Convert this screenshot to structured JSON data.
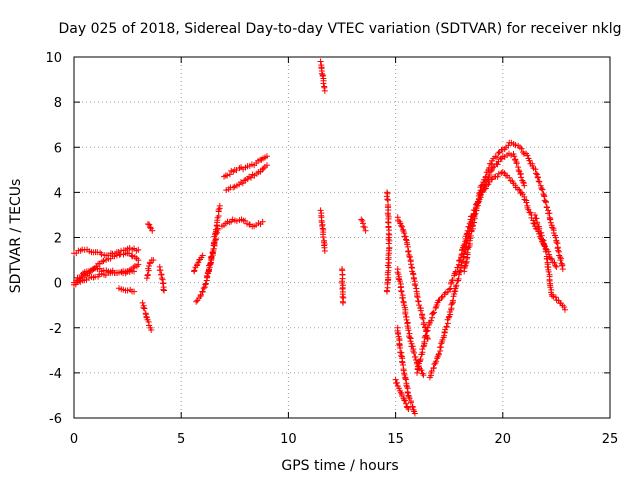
{
  "chart_data": {
    "type": "scatter",
    "title": "Day 025 of 2018, Sidereal Day-to-day VTEC variation (SDTVAR) for receiver nklg",
    "xlabel": "GPS time / hours",
    "ylabel": "SDTVAR / TECUs",
    "xlim": [
      0,
      25
    ],
    "ylim": [
      -6,
      10
    ],
    "xticks": [
      0,
      5,
      10,
      15,
      20,
      25
    ],
    "yticks": [
      -6,
      -4,
      -2,
      0,
      2,
      4,
      6,
      8,
      10
    ],
    "grid": true,
    "marker": "+",
    "color": "#ff0000",
    "series": [
      {
        "name": "track-a1",
        "x": [
          0.0,
          0.5,
          1.0,
          1.5,
          2.0,
          2.5,
          3.0
        ],
        "y": [
          1.3,
          1.45,
          1.35,
          1.2,
          1.35,
          1.5,
          1.45
        ]
      },
      {
        "name": "track-a2",
        "x": [
          0.0,
          0.4,
          0.8,
          1.2,
          1.6,
          2.0,
          2.5,
          3.0
        ],
        "y": [
          -0.1,
          0.25,
          0.55,
          0.85,
          1.05,
          1.2,
          1.3,
          1.0
        ]
      },
      {
        "name": "track-a3",
        "x": [
          0.1,
          0.6,
          1.1,
          1.6,
          2.1,
          2.6,
          3.0
        ],
        "y": [
          0.1,
          0.5,
          0.6,
          0.5,
          0.45,
          0.55,
          0.8
        ]
      },
      {
        "name": "track-a4",
        "x": [
          0.0,
          0.7,
          1.4,
          2.1,
          2.8
        ],
        "y": [
          0.0,
          0.2,
          0.35,
          0.45,
          0.5
        ]
      },
      {
        "name": "track-a5",
        "x": [
          2.1,
          2.5,
          2.8
        ],
        "y": [
          -0.25,
          -0.35,
          -0.4
        ]
      },
      {
        "name": "track-b1",
        "x": [
          3.2,
          3.35,
          3.5,
          3.6
        ],
        "y": [
          -0.9,
          -1.4,
          -1.9,
          -2.1
        ]
      },
      {
        "name": "track-b2",
        "x": [
          3.45,
          3.55,
          3.65
        ],
        "y": [
          2.6,
          2.45,
          2.3
        ]
      },
      {
        "name": "track-b3",
        "x": [
          3.4,
          3.55,
          3.7
        ],
        "y": [
          0.2,
          0.9,
          1.0
        ]
      },
      {
        "name": "track-b4",
        "x": [
          4.0,
          4.1,
          4.2
        ],
        "y": [
          0.7,
          0.2,
          -0.35
        ]
      },
      {
        "name": "track-c1",
        "x": [
          5.7,
          5.9,
          6.1,
          6.3,
          6.5,
          6.7
        ],
        "y": [
          -0.85,
          -0.6,
          -0.2,
          0.6,
          1.4,
          2.4
        ]
      },
      {
        "name": "track-c2",
        "x": [
          6.2,
          6.4,
          6.6,
          6.8
        ],
        "y": [
          0.3,
          1.0,
          2.2,
          3.4
        ]
      },
      {
        "name": "track-c3",
        "x": [
          5.6,
          5.8,
          6.0
        ],
        "y": [
          0.5,
          0.9,
          1.2
        ]
      },
      {
        "name": "track-d1",
        "x": [
          7.0,
          7.5,
          8.0,
          8.5,
          9.0
        ],
        "y": [
          4.7,
          5.0,
          5.1,
          5.3,
          5.6
        ]
      },
      {
        "name": "track-d2",
        "x": [
          7.1,
          7.6,
          8.1,
          8.6,
          9.0
        ],
        "y": [
          4.1,
          4.3,
          4.6,
          4.9,
          5.2
        ]
      },
      {
        "name": "track-d3",
        "x": [
          6.9,
          7.4,
          7.9,
          8.4,
          8.8
        ],
        "y": [
          2.5,
          2.8,
          2.75,
          2.5,
          2.7
        ]
      },
      {
        "name": "track-e1",
        "x": [
          11.5,
          11.55,
          11.6,
          11.7
        ],
        "y": [
          9.8,
          9.5,
          9.2,
          8.5
        ]
      },
      {
        "name": "track-e2",
        "x": [
          11.5,
          11.6,
          11.7
        ],
        "y": [
          3.2,
          2.4,
          1.4
        ]
      },
      {
        "name": "track-e3",
        "x": [
          12.5,
          12.55
        ],
        "y": [
          0.6,
          -0.9
        ]
      },
      {
        "name": "track-e4",
        "x": [
          13.4,
          13.6
        ],
        "y": [
          2.8,
          2.3
        ]
      },
      {
        "name": "track-e5",
        "x": [
          14.6,
          14.65,
          14.7,
          14.6
        ],
        "y": [
          4.0,
          3.0,
          1.5,
          -0.4
        ]
      },
      {
        "name": "track-f1",
        "x": [
          15.1,
          15.4,
          15.7,
          16.0,
          16.5
        ],
        "y": [
          2.9,
          2.2,
          1.0,
          -0.5,
          -2.5
        ]
      },
      {
        "name": "track-f2",
        "x": [
          15.1,
          15.4,
          15.7,
          16.0,
          16.3
        ],
        "y": [
          0.6,
          -1.0,
          -2.6,
          -3.6,
          -4.1
        ]
      },
      {
        "name": "track-f3",
        "x": [
          15.1,
          15.3,
          15.6,
          15.9
        ],
        "y": [
          -2.0,
          -3.5,
          -5.0,
          -5.8
        ]
      },
      {
        "name": "track-f4",
        "x": [
          15.0,
          15.2,
          15.4,
          15.6
        ],
        "y": [
          -4.3,
          -4.8,
          -5.2,
          -5.6
        ]
      },
      {
        "name": "track-g1",
        "x": [
          16.6,
          17.0,
          17.5,
          18.0,
          18.5,
          19.0,
          19.5,
          20.0,
          20.5,
          21.0
        ],
        "y": [
          -4.2,
          -3.2,
          -1.5,
          0.5,
          2.5,
          4.0,
          5.0,
          5.6,
          5.7,
          4.3
        ]
      },
      {
        "name": "track-g2",
        "x": [
          16.0,
          16.5,
          17.0,
          17.5,
          18.0,
          18.5,
          19.0,
          19.5,
          20.0,
          20.5,
          21.0,
          21.5,
          22.0,
          22.5
        ],
        "y": [
          -4.0,
          -2.0,
          -0.8,
          -0.3,
          1.0,
          2.8,
          4.0,
          4.6,
          4.9,
          4.4,
          3.8,
          2.5,
          1.5,
          0.7
        ]
      },
      {
        "name": "track-g3",
        "x": [
          18.2,
          18.6,
          19.0,
          19.5,
          20.0,
          20.4,
          20.8,
          21.2,
          21.6,
          22.0,
          22.5,
          22.8
        ],
        "y": [
          0.5,
          2.5,
          4.3,
          5.4,
          5.9,
          6.2,
          6.0,
          5.5,
          4.8,
          3.6,
          1.8,
          0.6
        ]
      },
      {
        "name": "track-g4",
        "x": [
          21.5,
          22.0,
          22.3,
          22.6,
          22.9
        ],
        "y": [
          3.0,
          1.5,
          -0.6,
          -0.8,
          -1.2
        ]
      }
    ]
  }
}
